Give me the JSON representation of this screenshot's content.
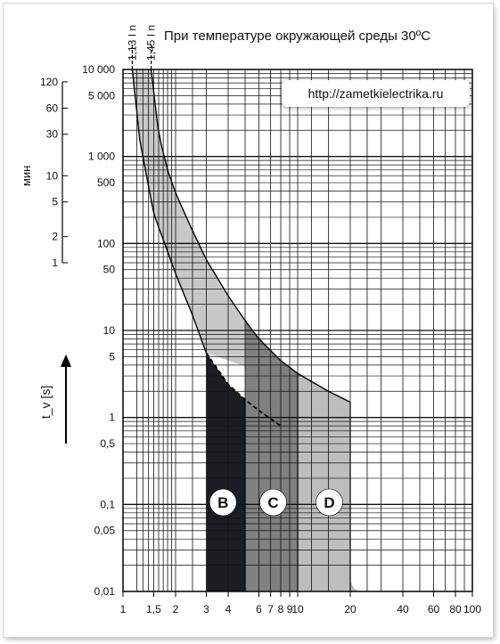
{
  "title": "При температуре окружающей среды 30ºC",
  "site_url": "http://zametkielectrika.ru",
  "colors": {
    "envelope": "#c8c8c8",
    "curve_b": "#1a1e22",
    "curve_c": "#808080",
    "curve_d": "#bdbdbd",
    "grid": "#111111",
    "badge_fill": "#ffffff",
    "badge_text": "#000000"
  },
  "chart_data": {
    "type": "area",
    "title": "При температуре окружающей среды 30ºC",
    "xlabel": "",
    "ylabel": "t_v [s]",
    "x_scale": "log",
    "y_scale": "log",
    "xlim": [
      1,
      100
    ],
    "ylim": [
      0.01,
      10000
    ],
    "grid": true,
    "x_ticks": [
      "1",
      "1,5",
      "2",
      "3",
      "4",
      "6",
      "7",
      "8",
      "9",
      "10",
      "20",
      "40",
      "60",
      "80",
      "100"
    ],
    "y_ticks_seconds": [
      "0,01",
      "0,05",
      "0,1",
      "0,5",
      "1",
      "5",
      "10",
      "50",
      "100",
      "500",
      "1 000",
      "5 000",
      "10 000"
    ],
    "y_ticks_minutes": [
      "1",
      "2",
      "5",
      "10",
      "30",
      "60",
      "120"
    ],
    "y_minutes_label": "мин",
    "top_markers": [
      "1,13 I n",
      "1,45 I n"
    ],
    "thermal_zone": {
      "upper": {
        "x": [
          1.45,
          1.6,
          1.8,
          2,
          2.5,
          3,
          4,
          5,
          6,
          8,
          10,
          15,
          20
        ],
        "y": [
          10000,
          1800,
          700,
          380,
          140,
          65,
          25,
          13,
          8,
          4.5,
          3.2,
          2,
          1.5
        ]
      },
      "lower": {
        "x": [
          1.13,
          1.25,
          1.5,
          2,
          2.5,
          3,
          4,
          5,
          6,
          8
        ],
        "y": [
          10000,
          1500,
          220,
          45,
          15,
          5.5,
          2.4,
          1.6,
          1.2,
          0.8
        ]
      }
    },
    "series": [
      {
        "name": "B",
        "x_from": 3,
        "x_to": 5
      },
      {
        "name": "C",
        "x_from": 5,
        "x_to": 10
      },
      {
        "name": "D",
        "x_from": 10,
        "x_to": 20
      }
    ]
  }
}
